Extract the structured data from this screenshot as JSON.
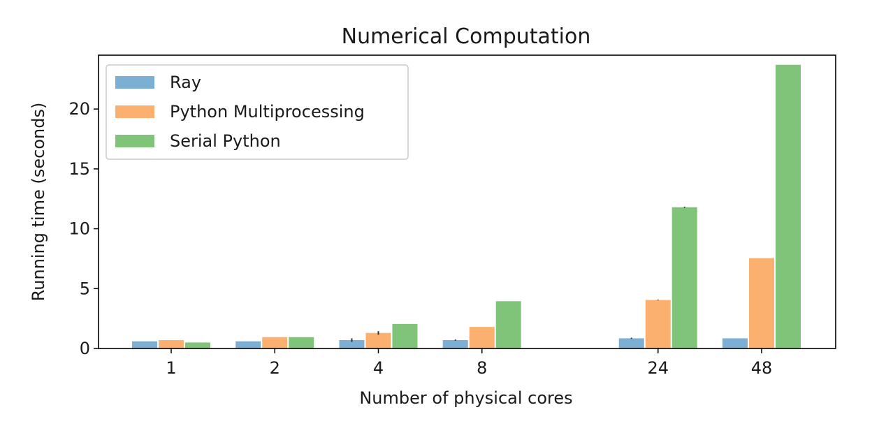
{
  "chart_data": {
    "type": "bar",
    "title": "Numerical Computation",
    "xlabel": "Number of physical cores",
    "ylabel": "Running time (seconds)",
    "ylim": [
      0,
      24.5
    ],
    "yticks": [
      0,
      5,
      10,
      15,
      20
    ],
    "categories": [
      "1",
      "2",
      "4",
      "8",
      "24",
      "48"
    ],
    "category_positions": [
      1,
      2,
      3,
      4,
      5.7,
      6.7
    ],
    "series": [
      {
        "name": "Ray",
        "color": "#7bafd4",
        "values": [
          0.6,
          0.6,
          0.7,
          0.7,
          0.85,
          0.85
        ],
        "errors": [
          0,
          0,
          0.15,
          0.05,
          0.05,
          0
        ]
      },
      {
        "name": "Python Multiprocessing",
        "color": "#fbb070",
        "values": [
          0.7,
          0.95,
          1.3,
          1.8,
          4.05,
          7.55
        ],
        "errors": [
          0,
          0,
          0.15,
          0,
          0.03,
          0
        ]
      },
      {
        "name": "Serial Python",
        "color": "#80c47a",
        "values": [
          0.5,
          0.95,
          2.05,
          3.95,
          11.8,
          23.7
        ],
        "errors": [
          0,
          0,
          0,
          0,
          0.05,
          0
        ]
      }
    ],
    "legend_position": "top-left",
    "grid": false
  }
}
